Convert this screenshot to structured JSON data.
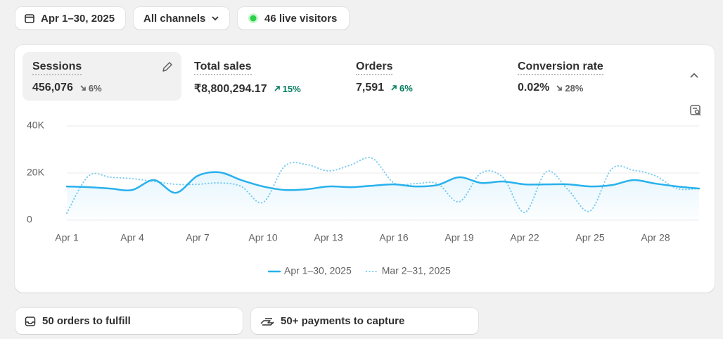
{
  "toolbar": {
    "date_range": "Apr 1–30, 2025",
    "channels": "All channels",
    "live_visitors": "46 live visitors"
  },
  "metrics": [
    {
      "label": "Sessions",
      "value": "456,076",
      "change": "6%",
      "direction": "down"
    },
    {
      "label": "Total sales",
      "value": "₹8,800,294.17",
      "change": "15%",
      "direction": "up"
    },
    {
      "label": "Orders",
      "value": "7,591",
      "change": "6%",
      "direction": "up"
    },
    {
      "label": "Conversion rate",
      "value": "0.02%",
      "change": "28%",
      "direction": "down"
    }
  ],
  "chart_data": {
    "type": "line",
    "categories": [
      "Apr 1",
      null,
      null,
      "Apr 4",
      null,
      null,
      "Apr 7",
      null,
      null,
      "Apr 10",
      null,
      null,
      "Apr 13",
      null,
      null,
      "Apr 16",
      null,
      null,
      "Apr 19",
      null,
      null,
      "Apr 22",
      null,
      null,
      "Apr 25",
      null,
      null,
      "Apr 28",
      null,
      null
    ],
    "series": [
      {
        "name": "Apr 1–30, 2025",
        "color": "#28b1ec",
        "style": "solid",
        "values": [
          14300,
          14000,
          13400,
          12800,
          17000,
          11600,
          18800,
          20300,
          17000,
          14300,
          12800,
          13100,
          14300,
          14000,
          14600,
          15200,
          14300,
          14900,
          18200,
          15800,
          16400,
          15200,
          15200,
          15200,
          14300,
          14900,
          17000,
          15500,
          14300,
          13400
        ]
      },
      {
        "name": "Mar 2–31, 2025",
        "color": "#7ccdf0",
        "style": "dotted",
        "values": [
          3000,
          18800,
          18200,
          17600,
          16400,
          15200,
          15200,
          15800,
          14300,
          7500,
          23000,
          23600,
          20900,
          23300,
          26300,
          15800,
          15500,
          15500,
          7800,
          20000,
          18200,
          3300,
          20600,
          12800,
          3900,
          21800,
          21200,
          18800,
          13400,
          13400
        ]
      }
    ],
    "ylim": [
      0,
      40000
    ],
    "yticks": [
      {
        "value": 0,
        "label": "0"
      },
      {
        "value": 20000,
        "label": "20K"
      },
      {
        "value": 40000,
        "label": "40K"
      }
    ],
    "grid": true
  },
  "tasks": [
    "50 orders to fulfill",
    "50+ payments to capture"
  ]
}
